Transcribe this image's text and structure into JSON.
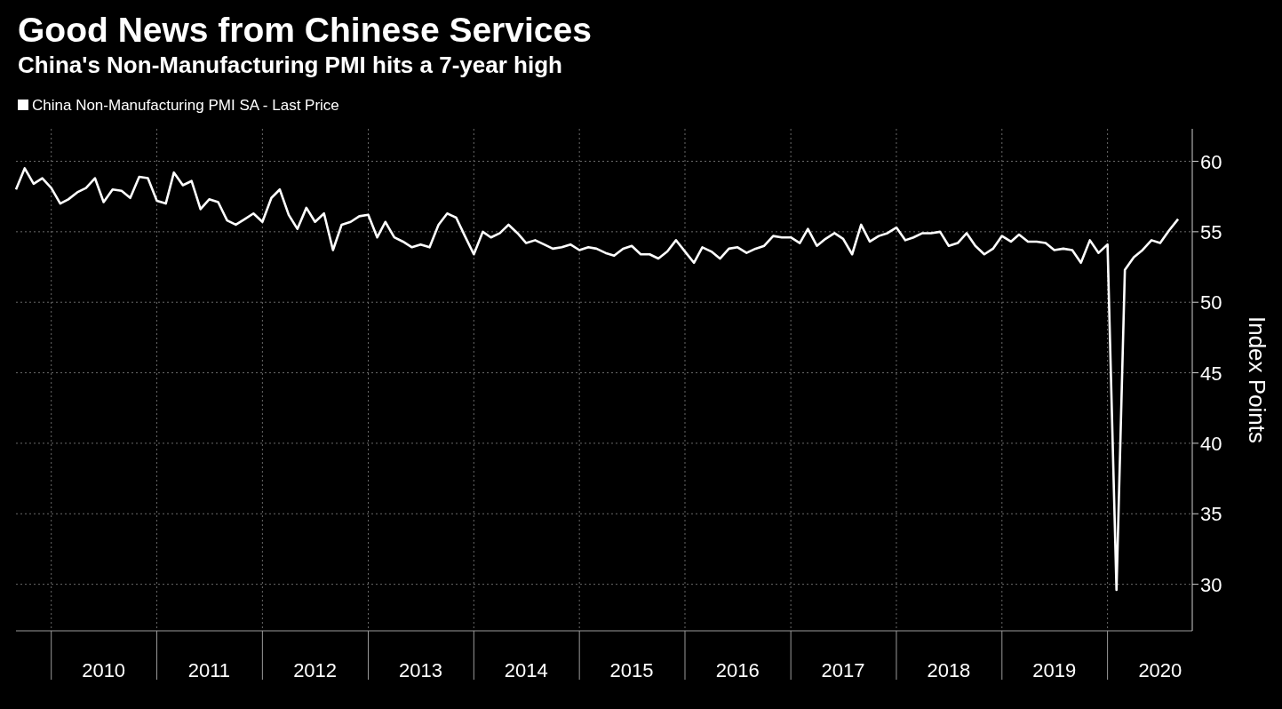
{
  "chart_data": {
    "type": "line",
    "title": "Good News from Chinese Services",
    "subtitle": "China's Non-Manufacturing PMI hits a 7-year high",
    "ylabel": "Index Points",
    "x": [
      "2009-09",
      "2009-10",
      "2009-11",
      "2009-12",
      "2010-01",
      "2010-02",
      "2010-03",
      "2010-04",
      "2010-05",
      "2010-06",
      "2010-07",
      "2010-08",
      "2010-09",
      "2010-10",
      "2010-11",
      "2010-12",
      "2011-01",
      "2011-02",
      "2011-03",
      "2011-04",
      "2011-05",
      "2011-06",
      "2011-07",
      "2011-08",
      "2011-09",
      "2011-10",
      "2011-11",
      "2011-12",
      "2012-01",
      "2012-02",
      "2012-03",
      "2012-04",
      "2012-05",
      "2012-06",
      "2012-07",
      "2012-08",
      "2012-09",
      "2012-10",
      "2012-11",
      "2012-12",
      "2013-01",
      "2013-02",
      "2013-03",
      "2013-04",
      "2013-05",
      "2013-06",
      "2013-07",
      "2013-08",
      "2013-09",
      "2013-10",
      "2013-11",
      "2013-12",
      "2014-01",
      "2014-02",
      "2014-03",
      "2014-04",
      "2014-05",
      "2014-06",
      "2014-07",
      "2014-08",
      "2014-09",
      "2014-10",
      "2014-11",
      "2014-12",
      "2015-01",
      "2015-02",
      "2015-03",
      "2015-04",
      "2015-05",
      "2015-06",
      "2015-07",
      "2015-08",
      "2015-09",
      "2015-10",
      "2015-11",
      "2015-12",
      "2016-01",
      "2016-02",
      "2016-03",
      "2016-04",
      "2016-05",
      "2016-06",
      "2016-07",
      "2016-08",
      "2016-09",
      "2016-10",
      "2016-11",
      "2016-12",
      "2017-01",
      "2017-02",
      "2017-03",
      "2017-04",
      "2017-05",
      "2017-06",
      "2017-07",
      "2017-08",
      "2017-09",
      "2017-10",
      "2017-11",
      "2017-12",
      "2018-01",
      "2018-02",
      "2018-03",
      "2018-04",
      "2018-05",
      "2018-06",
      "2018-07",
      "2018-08",
      "2018-09",
      "2018-10",
      "2018-11",
      "2018-12",
      "2019-01",
      "2019-02",
      "2019-03",
      "2019-04",
      "2019-05",
      "2019-06",
      "2019-07",
      "2019-08",
      "2019-09",
      "2019-10",
      "2019-11",
      "2019-12",
      "2020-01",
      "2020-02",
      "2020-03",
      "2020-04",
      "2020-05",
      "2020-06",
      "2020-07",
      "2020-08",
      "2020-09"
    ],
    "series": [
      {
        "name": "China Non-Manufacturing PMI SA - Last Price",
        "color": "#ffffff",
        "values": [
          58.0,
          59.5,
          58.4,
          58.8,
          58.1,
          57.0,
          57.3,
          57.8,
          58.1,
          58.8,
          57.1,
          58.0,
          57.9,
          57.4,
          58.9,
          58.8,
          57.2,
          57.0,
          59.2,
          58.3,
          58.6,
          56.6,
          57.3,
          57.1,
          55.8,
          55.5,
          55.9,
          56.3,
          55.7,
          57.4,
          58.0,
          56.2,
          55.2,
          56.7,
          55.7,
          56.3,
          53.7,
          55.5,
          55.7,
          56.1,
          56.2,
          54.6,
          55.7,
          54.6,
          54.3,
          53.9,
          54.1,
          53.9,
          55.5,
          56.3,
          56.0,
          54.7,
          53.4,
          55.0,
          54.6,
          54.9,
          55.5,
          54.9,
          54.2,
          54.4,
          54.1,
          53.8,
          53.9,
          54.1,
          53.7,
          53.9,
          53.8,
          53.5,
          53.3,
          53.8,
          54.0,
          53.4,
          53.4,
          53.1,
          53.6,
          54.4,
          53.6,
          52.8,
          53.9,
          53.6,
          53.1,
          53.8,
          53.9,
          53.5,
          53.8,
          54.0,
          54.7,
          54.6,
          54.6,
          54.2,
          55.2,
          54.0,
          54.5,
          54.9,
          54.5,
          53.4,
          55.5,
          54.3,
          54.7,
          54.9,
          55.3,
          54.4,
          54.6,
          54.9,
          54.9,
          55.0,
          54.0,
          54.2,
          54.9,
          54.0,
          53.4,
          53.8,
          54.7,
          54.3,
          54.8,
          54.3,
          54.3,
          54.2,
          53.7,
          53.8,
          53.7,
          52.8,
          54.4,
          53.5,
          54.1,
          29.6,
          52.3,
          53.2,
          53.7,
          54.4,
          54.2,
          55.1,
          55.9
        ]
      }
    ],
    "xlim": [
      "2009-09-01",
      "2020-10-20"
    ],
    "xticks": [
      {
        "value": "2010-01-01",
        "label": null
      },
      {
        "value": "2010-07-01",
        "label": "2010"
      },
      {
        "value": "2011-01-01",
        "label": null
      },
      {
        "value": "2011-07-01",
        "label": "2011"
      },
      {
        "value": "2012-01-01",
        "label": null
      },
      {
        "value": "2012-07-01",
        "label": "2012"
      },
      {
        "value": "2013-01-01",
        "label": null
      },
      {
        "value": "2013-07-01",
        "label": "2013"
      },
      {
        "value": "2014-01-01",
        "label": null
      },
      {
        "value": "2014-07-01",
        "label": "2014"
      },
      {
        "value": "2015-01-01",
        "label": null
      },
      {
        "value": "2015-07-01",
        "label": "2015"
      },
      {
        "value": "2016-01-01",
        "label": null
      },
      {
        "value": "2016-07-01",
        "label": "2016"
      },
      {
        "value": "2017-01-01",
        "label": null
      },
      {
        "value": "2017-07-01",
        "label": "2017"
      },
      {
        "value": "2018-01-01",
        "label": null
      },
      {
        "value": "2018-07-01",
        "label": "2018"
      },
      {
        "value": "2019-01-01",
        "label": null
      },
      {
        "value": "2019-07-01",
        "label": "2019"
      },
      {
        "value": "2020-01-01",
        "label": null
      },
      {
        "value": "2020-07-01",
        "label": "2020"
      }
    ],
    "ylim": [
      26.7,
      62.3
    ],
    "yticks": [
      30,
      35,
      40,
      45,
      50,
      55,
      60
    ],
    "grid": true,
    "legend": "top left",
    "marker": "none",
    "line_style": "solid"
  }
}
